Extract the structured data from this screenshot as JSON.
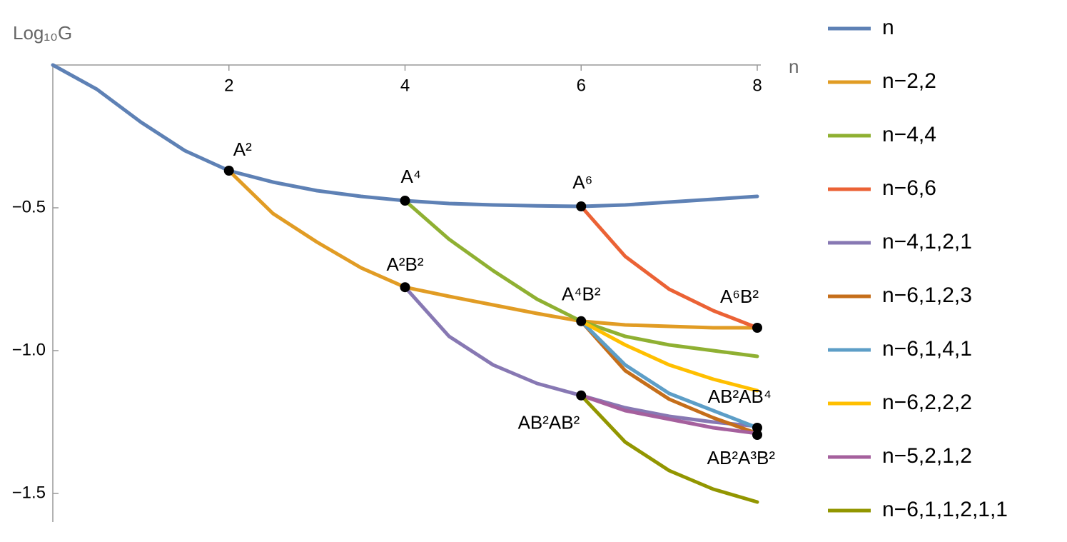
{
  "chart_data": {
    "type": "line",
    "y_label": "Log₁₀G",
    "x_label": "n",
    "x": [
      0,
      0.5,
      1,
      1.5,
      2,
      2.5,
      3,
      3.5,
      4,
      4.5,
      5,
      5.5,
      6,
      6.5,
      7,
      7.5,
      8
    ],
    "xlim": [
      0,
      8
    ],
    "ylim": [
      -1.6,
      0
    ],
    "xticks": [
      2,
      4,
      6,
      8
    ],
    "yticks": [
      {
        "value": -0.5,
        "label": "−0.5"
      },
      {
        "value": -1,
        "label": "−1.0"
      },
      {
        "value": -1.5,
        "label": "−1.5"
      }
    ],
    "series": [
      {
        "name": "n",
        "color": "#5e81b5",
        "values": [
          0,
          -0.085,
          -0.2,
          -0.3,
          -0.37,
          -0.41,
          -0.44,
          -0.46,
          -0.475,
          -0.485,
          -0.49,
          -0.493,
          -0.495,
          -0.49,
          -0.48,
          -0.47,
          -0.46
        ]
      },
      {
        "name": "n−2,2",
        "color": "#e19c24",
        "values": [
          null,
          null,
          null,
          null,
          -0.37,
          -0.52,
          -0.62,
          -0.71,
          -0.778,
          -0.81,
          -0.84,
          -0.87,
          -0.897,
          -0.91,
          -0.915,
          -0.92,
          -0.92
        ]
      },
      {
        "name": "n−4,4",
        "color": "#8fb032",
        "values": [
          null,
          null,
          null,
          null,
          null,
          null,
          null,
          null,
          -0.475,
          -0.61,
          -0.72,
          -0.82,
          -0.897,
          -0.95,
          -0.98,
          -1.0,
          -1.02
        ]
      },
      {
        "name": "n−6,6",
        "color": "#eb6235",
        "values": [
          null,
          null,
          null,
          null,
          null,
          null,
          null,
          null,
          null,
          null,
          null,
          null,
          -0.495,
          -0.67,
          -0.785,
          -0.86,
          -0.92
        ]
      },
      {
        "name": "n−4,1,2,1",
        "color": "#8778b3",
        "values": [
          null,
          null,
          null,
          null,
          null,
          null,
          null,
          null,
          -0.778,
          -0.95,
          -1.05,
          -1.115,
          -1.157,
          -1.2,
          -1.23,
          -1.25,
          -1.265
        ]
      },
      {
        "name": "n−6,1,2,3",
        "color": "#c56e1a",
        "values": [
          null,
          null,
          null,
          null,
          null,
          null,
          null,
          null,
          null,
          null,
          null,
          null,
          -0.897,
          -1.07,
          -1.17,
          -1.235,
          -1.29
        ]
      },
      {
        "name": "n−6,1,4,1",
        "color": "#5d9ec7",
        "values": [
          null,
          null,
          null,
          null,
          null,
          null,
          null,
          null,
          null,
          null,
          null,
          null,
          -0.897,
          -1.05,
          -1.15,
          -1.21,
          -1.27
        ]
      },
      {
        "name": "n−6,2,2,2",
        "color": "#ffbf00",
        "values": [
          null,
          null,
          null,
          null,
          null,
          null,
          null,
          null,
          null,
          null,
          null,
          null,
          -0.897,
          -0.98,
          -1.05,
          -1.1,
          -1.14
        ]
      },
      {
        "name": "n−5,2,1,2",
        "color": "#a5609d",
        "values": [
          null,
          null,
          null,
          null,
          null,
          null,
          null,
          null,
          null,
          null,
          null,
          null,
          -1.157,
          -1.21,
          -1.24,
          -1.27,
          -1.29
        ]
      },
      {
        "name": "n−6,1,1,2,1,1",
        "color": "#929600",
        "values": [
          null,
          null,
          null,
          null,
          null,
          null,
          null,
          null,
          null,
          null,
          null,
          null,
          -1.157,
          -1.32,
          -1.42,
          -1.485,
          -1.53
        ]
      }
    ],
    "points": [
      {
        "label": "A²",
        "x": 2,
        "y": -0.37
      },
      {
        "label": "A⁴",
        "x": 4,
        "y": -0.475
      },
      {
        "label": "A⁶",
        "x": 6,
        "y": -0.495
      },
      {
        "label": "A²B²",
        "x": 4,
        "y": -0.778
      },
      {
        "label": "A⁴B²",
        "x": 6,
        "y": -0.897
      },
      {
        "label": "A⁶B²",
        "x": 8,
        "y": -0.92
      },
      {
        "label": "AB²AB²",
        "x": 6,
        "y": -1.157
      },
      {
        "label": "AB²AB⁴",
        "x": 8,
        "y": -1.27
      },
      {
        "label": "AB²A³B²",
        "x": 8,
        "y": -1.295
      }
    ]
  }
}
